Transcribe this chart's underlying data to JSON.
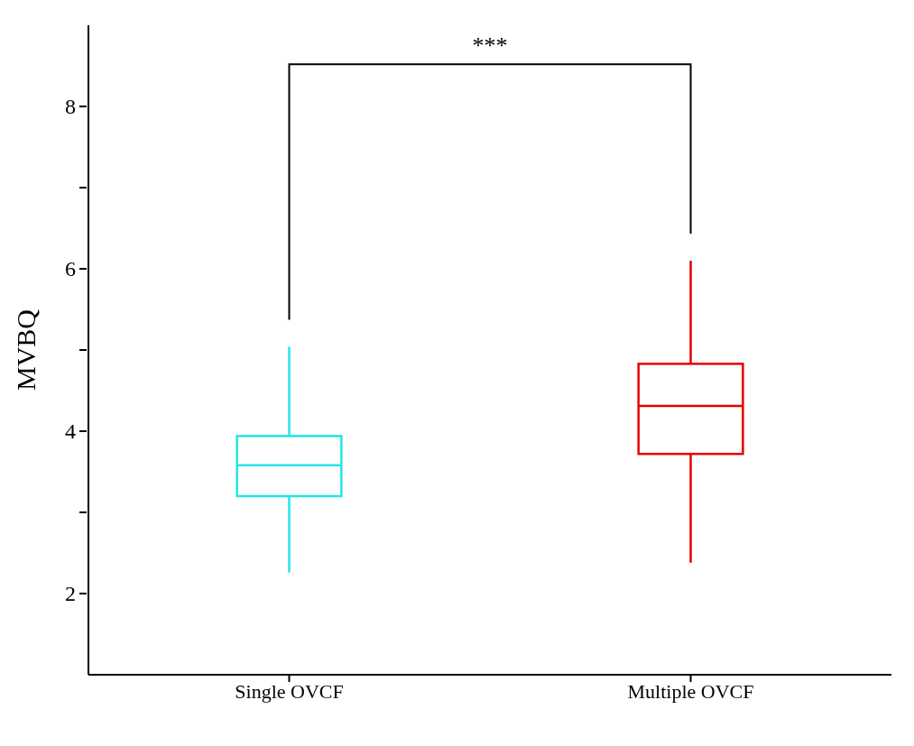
{
  "chart_data": {
    "type": "box",
    "ylabel": "MVBQ",
    "categories": [
      "Single OVCF",
      "Multiple OVCF"
    ],
    "colors": [
      "#22e6e6",
      "#e60000"
    ],
    "boxes": [
      {
        "low": 2.26,
        "q1": 3.2,
        "median": 3.58,
        "q3": 3.94,
        "high": 5.04
      },
      {
        "low": 2.38,
        "q1": 3.72,
        "median": 4.31,
        "q3": 4.83,
        "high": 6.1
      }
    ],
    "ylim": [
      1,
      9
    ],
    "yticks": [
      2,
      {
        "value": 3,
        "label": null
      },
      4,
      {
        "value": 5,
        "label": null
      },
      6,
      {
        "value": 7,
        "label": null
      },
      8
    ],
    "annotations": [
      "***"
    ]
  }
}
